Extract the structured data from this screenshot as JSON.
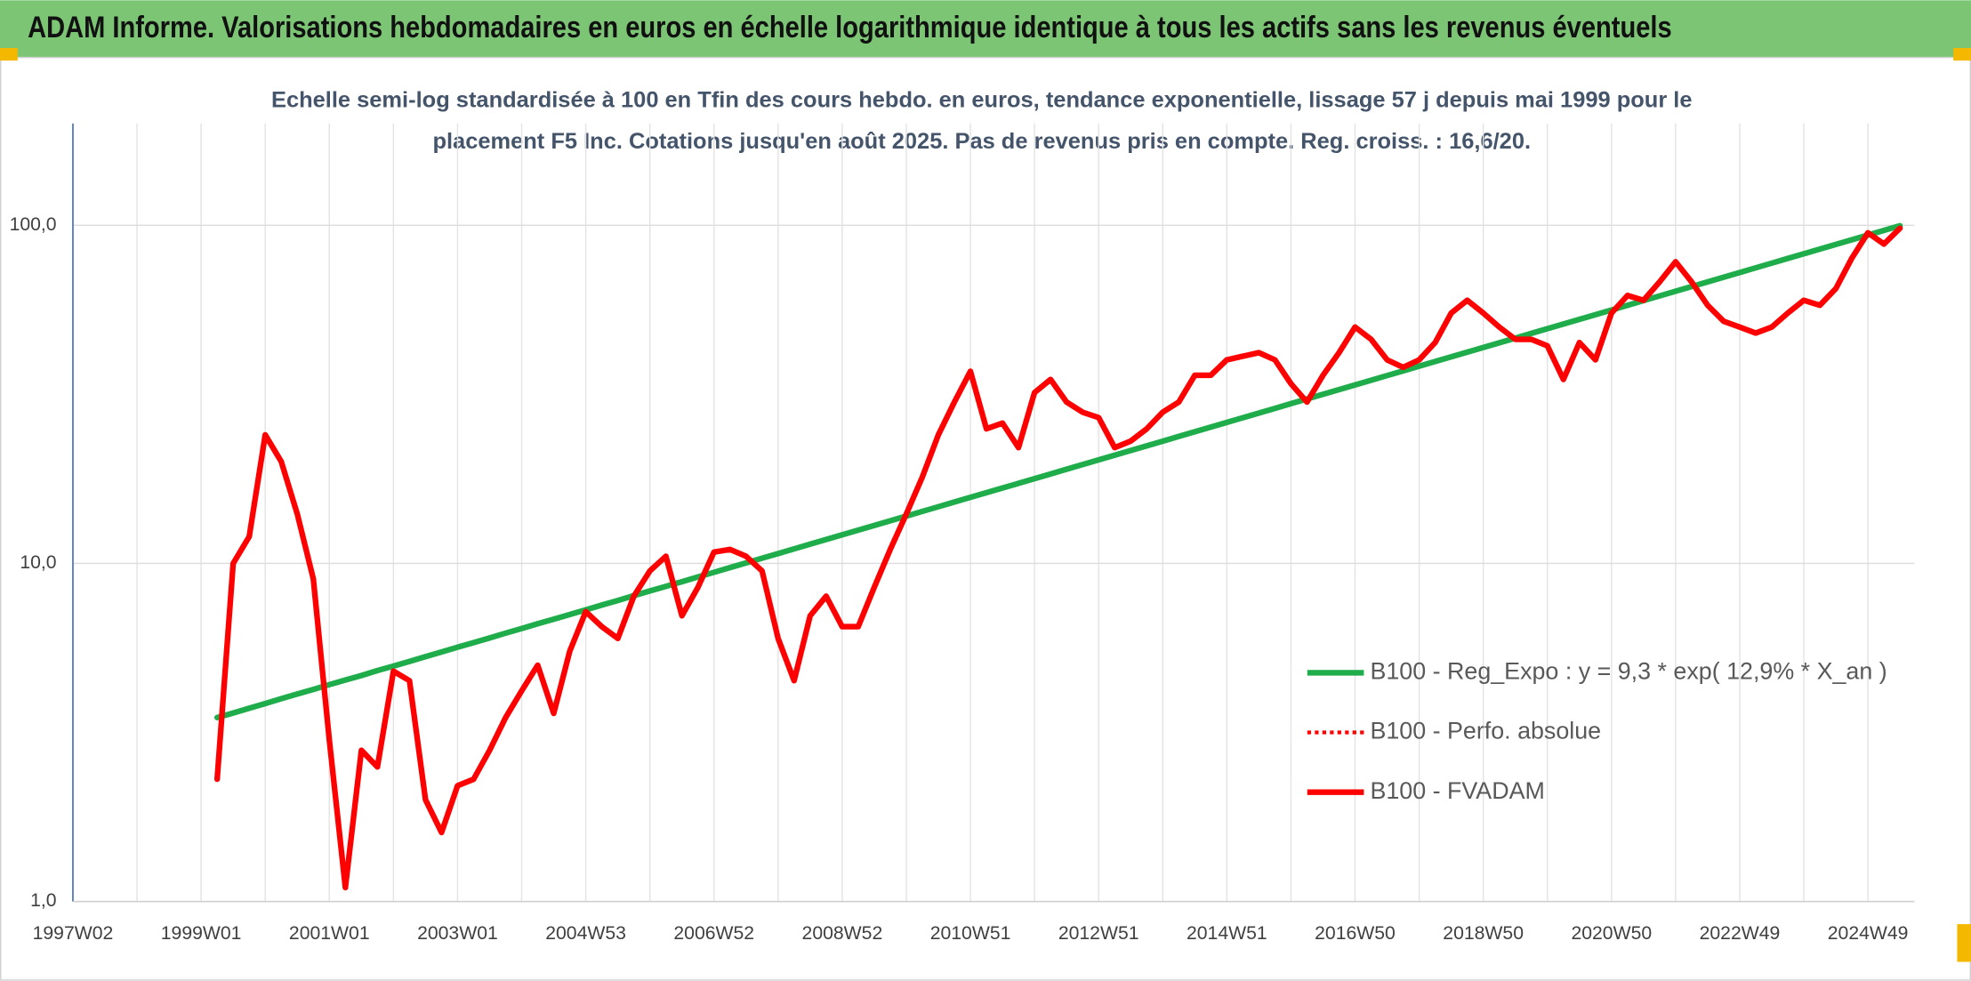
{
  "header": {
    "title": "ADAM Informe. Valorisations hebdomadaires en euros en échelle logarithmique identique à tous les actifs sans les revenus éventuels"
  },
  "chart_data": {
    "type": "line",
    "subtitle": "Echelle semi-log standardisée à 100 en Tfin des cours hebdo. en euros, tendance exponentielle, lissage 57 j depuis mai 1999 pour le placement F5 Inc. Cotations jusqu'en août 2025. Pas de revenus pris en compte. Reg. croiss. : 16,6/20.",
    "y_scale": "log",
    "ylim": [
      1,
      200
    ],
    "yticks": [
      {
        "value": 1,
        "label": "1,0"
      },
      {
        "value": 10,
        "label": "10,0"
      },
      {
        "value": 100,
        "label": "100,0"
      }
    ],
    "grid": true,
    "legend": "right",
    "categories": [
      "1997W02",
      null,
      null,
      null,
      null,
      null,
      null,
      null,
      "1999W01",
      null,
      null,
      null,
      null,
      null,
      null,
      null,
      "2001W01",
      null,
      null,
      null,
      null,
      null,
      null,
      null,
      "2003W01",
      null,
      null,
      null,
      null,
      null,
      null,
      null,
      "2004W53",
      null,
      null,
      null,
      null,
      null,
      null,
      null,
      "2006W52",
      null,
      null,
      null,
      null,
      null,
      null,
      null,
      "2008W52",
      null,
      null,
      null,
      null,
      null,
      null,
      null,
      "2010W51",
      null,
      null,
      null,
      null,
      null,
      null,
      null,
      "2012W51",
      null,
      null,
      null,
      null,
      null,
      null,
      null,
      "2014W51",
      null,
      null,
      null,
      null,
      null,
      null,
      null,
      "2016W50",
      null,
      null,
      null,
      null,
      null,
      null,
      null,
      "2018W50",
      null,
      null,
      null,
      null,
      null,
      null,
      null,
      "2020W50",
      null,
      null,
      null,
      null,
      null,
      null,
      null,
      "2022W49",
      null,
      null,
      null,
      null,
      null,
      null,
      null,
      "2024W49",
      null,
      null
    ],
    "series": [
      {
        "name": "B100 - Reg_Expo : y = 9,3 * exp( 12,9% *  X_an )",
        "color": "#1fad4b",
        "style": "solid",
        "values": [
          null,
          null,
          null,
          null,
          null,
          null,
          null,
          null,
          null,
          3.5,
          3.61,
          3.73,
          3.85,
          3.98,
          4.11,
          4.24,
          4.38,
          4.52,
          4.66,
          4.82,
          4.97,
          5.13,
          5.3,
          5.47,
          5.65,
          5.83,
          6.02,
          6.22,
          6.42,
          6.63,
          6.84,
          7.06,
          7.29,
          7.53,
          7.77,
          8.03,
          8.29,
          8.55,
          8.83,
          9.12,
          9.41,
          9.72,
          10.03,
          10.36,
          10.69,
          11.04,
          11.4,
          11.77,
          12.15,
          12.54,
          12.95,
          13.37,
          13.8,
          14.25,
          14.71,
          15.19,
          15.68,
          16.19,
          16.71,
          17.25,
          17.81,
          18.39,
          18.99,
          19.6,
          20.24,
          20.89,
          21.57,
          22.27,
          22.99,
          23.74,
          24.51,
          25.3,
          26.12,
          26.97,
          27.84,
          28.74,
          29.68,
          30.64,
          31.63,
          32.66,
          33.72,
          34.81,
          35.94,
          37.1,
          38.31,
          39.55,
          40.83,
          42.15,
          43.52,
          44.93,
          46.38,
          47.89,
          49.44,
          51.04,
          52.7,
          54.4,
          56.17,
          57.99,
          59.87,
          61.81,
          63.81,
          65.88,
          68.02,
          70.22,
          72.5,
          74.85,
          77.27,
          79.78,
          82.36,
          85.03,
          87.79,
          90.63,
          93.57,
          96.6,
          99.73
        ]
      },
      {
        "name": "B100 - Perfo. absolue",
        "color": "#ff0000",
        "style": "dotted",
        "values": [
          null,
          null,
          null,
          null,
          null,
          null,
          null,
          null,
          null,
          2.3,
          10,
          12,
          24,
          20,
          14,
          9,
          3,
          1.1,
          2.8,
          2.5,
          4.8,
          4.5,
          2.0,
          1.6,
          2.2,
          2.3,
          2.8,
          3.5,
          4.2,
          5.0,
          3.6,
          5.5,
          7.2,
          6.5,
          6.0,
          8.0,
          9.5,
          10.5,
          7.0,
          8.5,
          10.8,
          11.0,
          10.5,
          9.5,
          6.0,
          4.5,
          7.0,
          8.0,
          6.5,
          6.5,
          8.5,
          11,
          14,
          18,
          24,
          30,
          37,
          25,
          26,
          22,
          32,
          35,
          30,
          28,
          27,
          22,
          23,
          25,
          28,
          30,
          36,
          36,
          40,
          41,
          42,
          40,
          34,
          30,
          36,
          42,
          50,
          46,
          40,
          38,
          40,
          45,
          55,
          60,
          55,
          50,
          46,
          46,
          44,
          35,
          45,
          40,
          55,
          62,
          60,
          68,
          78,
          68,
          58,
          52,
          50,
          48,
          50,
          55,
          60,
          58,
          65,
          80,
          95,
          88,
          98
        ]
      },
      {
        "name": "B100 - FVADAM",
        "color": "#ff0000",
        "style": "solid",
        "values": [
          null,
          null,
          null,
          null,
          null,
          null,
          null,
          null,
          null,
          2.3,
          10,
          12,
          24,
          20,
          14,
          9,
          3,
          1.1,
          2.8,
          2.5,
          4.8,
          4.5,
          2.0,
          1.6,
          2.2,
          2.3,
          2.8,
          3.5,
          4.2,
          5.0,
          3.6,
          5.5,
          7.2,
          6.5,
          6.0,
          8.0,
          9.5,
          10.5,
          7.0,
          8.5,
          10.8,
          11.0,
          10.5,
          9.5,
          6.0,
          4.5,
          7.0,
          8.0,
          6.5,
          6.5,
          8.5,
          11,
          14,
          18,
          24,
          30,
          37,
          25,
          26,
          22,
          32,
          35,
          30,
          28,
          27,
          22,
          23,
          25,
          28,
          30,
          36,
          36,
          40,
          41,
          42,
          40,
          34,
          30,
          36,
          42,
          50,
          46,
          40,
          38,
          40,
          45,
          55,
          60,
          55,
          50,
          46,
          46,
          44,
          35,
          45,
          40,
          55,
          62,
          60,
          68,
          78,
          68,
          58,
          52,
          50,
          48,
          50,
          55,
          60,
          58,
          65,
          80,
          95,
          88,
          98
        ]
      }
    ]
  }
}
